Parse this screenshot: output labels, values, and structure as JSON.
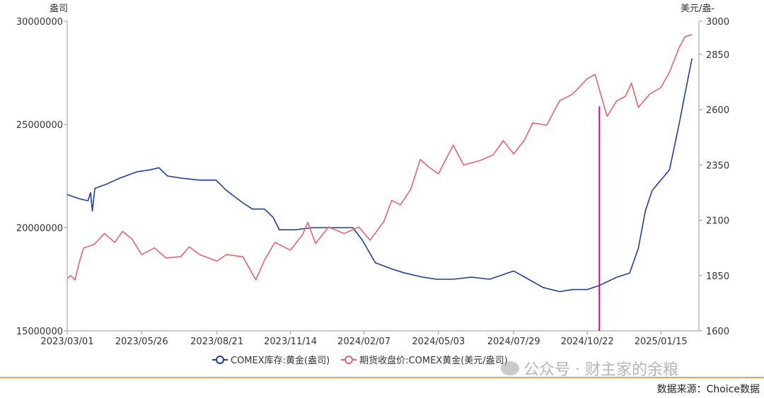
{
  "chart_data": {
    "type": "line",
    "left_axis_unit": "盎司",
    "right_axis_unit": "美元/盎-",
    "y_left_lim": [
      15000000,
      30000000
    ],
    "y_left_ticks": [
      "15000000",
      "20000000",
      "25000000",
      "30000000"
    ],
    "y_right_lim": [
      1600,
      3000
    ],
    "y_right_ticks": [
      "1600",
      "1850",
      "2100",
      "2350",
      "2600",
      "2850",
      "3000"
    ],
    "x_ticks": [
      "2023/03/01",
      "2023/05/26",
      "2023/08/21",
      "2023/11/14",
      "2024/02/07",
      "2024/05/03",
      "2024/07/29",
      "2024/10/22",
      "2025/01/15"
    ],
    "x_range": [
      "2023/03/01",
      "2025/02/28"
    ],
    "marker_line_date": "2024/11/05",
    "marker_line_color": "#cc00aa",
    "series": [
      {
        "name": "COMEX库存:黄金(盎司)",
        "axis": "left",
        "color": "#1f3f9f",
        "points": [
          [
            "2023/03/01",
            21600000
          ],
          [
            "2023/03/15",
            21400000
          ],
          [
            "2023/03/25",
            21300000
          ],
          [
            "2023/03/28",
            21700000
          ],
          [
            "2023/03/30",
            20800000
          ],
          [
            "2023/04/02",
            21900000
          ],
          [
            "2023/04/15",
            22100000
          ],
          [
            "2023/05/01",
            22400000
          ],
          [
            "2023/05/20",
            22700000
          ],
          [
            "2023/06/05",
            22800000
          ],
          [
            "2023/06/15",
            22900000
          ],
          [
            "2023/06/25",
            22500000
          ],
          [
            "2023/07/10",
            22400000
          ],
          [
            "2023/08/01",
            22300000
          ],
          [
            "2023/08/20",
            22300000
          ],
          [
            "2023/09/01",
            21800000
          ],
          [
            "2023/09/20",
            21200000
          ],
          [
            "2023/10/01",
            20900000
          ],
          [
            "2023/10/15",
            20900000
          ],
          [
            "2023/10/25",
            20500000
          ],
          [
            "2023/11/01",
            19900000
          ],
          [
            "2023/11/20",
            19900000
          ],
          [
            "2023/12/10",
            20000000
          ],
          [
            "2024/01/10",
            20000000
          ],
          [
            "2024/01/25",
            20000000
          ],
          [
            "2024/02/05",
            19400000
          ],
          [
            "2024/02/20",
            18300000
          ],
          [
            "2024/03/10",
            18000000
          ],
          [
            "2024/03/25",
            17800000
          ],
          [
            "2024/04/15",
            17600000
          ],
          [
            "2024/05/01",
            17500000
          ],
          [
            "2024/05/20",
            17500000
          ],
          [
            "2024/06/10",
            17600000
          ],
          [
            "2024/07/01",
            17500000
          ],
          [
            "2024/07/15",
            17700000
          ],
          [
            "2024/07/29",
            17900000
          ],
          [
            "2024/08/15",
            17500000
          ],
          [
            "2024/09/01",
            17100000
          ],
          [
            "2024/09/20",
            16900000
          ],
          [
            "2024/10/05",
            17000000
          ],
          [
            "2024/10/22",
            17000000
          ],
          [
            "2024/11/05",
            17200000
          ],
          [
            "2024/11/25",
            17600000
          ],
          [
            "2024/12/10",
            17800000
          ],
          [
            "2024/12/20",
            19000000
          ],
          [
            "2024/12/28",
            20800000
          ],
          [
            "2025/01/05",
            21800000
          ],
          [
            "2025/01/15",
            22300000
          ],
          [
            "2025/01/25",
            22800000
          ],
          [
            "2025/02/05",
            25000000
          ],
          [
            "2025/02/12",
            26500000
          ],
          [
            "2025/02/20",
            28200000
          ]
        ]
      },
      {
        "name": "期货收盘价:COMEX黄金(美元/盎司)",
        "axis": "right",
        "color": "#e8626a",
        "points": [
          [
            "2023/03/01",
            1836
          ],
          [
            "2023/03/05",
            1850
          ],
          [
            "2023/03/10",
            1830
          ],
          [
            "2023/03/15",
            1910
          ],
          [
            "2023/03/20",
            1975
          ],
          [
            "2023/04/01",
            1990
          ],
          [
            "2023/04/13",
            2040
          ],
          [
            "2023/04/25",
            2000
          ],
          [
            "2023/05/04",
            2050
          ],
          [
            "2023/05/15",
            2015
          ],
          [
            "2023/05/26",
            1945
          ],
          [
            "2023/06/10",
            1975
          ],
          [
            "2023/06/23",
            1930
          ],
          [
            "2023/07/10",
            1935
          ],
          [
            "2023/07/20",
            1980
          ],
          [
            "2023/08/01",
            1945
          ],
          [
            "2023/08/21",
            1915
          ],
          [
            "2023/09/01",
            1945
          ],
          [
            "2023/09/20",
            1935
          ],
          [
            "2023/10/05",
            1830
          ],
          [
            "2023/10/15",
            1920
          ],
          [
            "2023/10/27",
            2000
          ],
          [
            "2023/11/14",
            1965
          ],
          [
            "2023/11/28",
            2035
          ],
          [
            "2023/12/04",
            2090
          ],
          [
            "2023/12/13",
            1995
          ],
          [
            "2023/12/28",
            2070
          ],
          [
            "2024/01/15",
            2040
          ],
          [
            "2024/02/01",
            2070
          ],
          [
            "2024/02/14",
            2010
          ],
          [
            "2024/03/01",
            2095
          ],
          [
            "2024/03/10",
            2190
          ],
          [
            "2024/03/20",
            2170
          ],
          [
            "2024/04/01",
            2240
          ],
          [
            "2024/04/12",
            2375
          ],
          [
            "2024/04/22",
            2340
          ],
          [
            "2024/05/03",
            2310
          ],
          [
            "2024/05/20",
            2440
          ],
          [
            "2024/06/01",
            2350
          ],
          [
            "2024/06/20",
            2370
          ],
          [
            "2024/07/05",
            2395
          ],
          [
            "2024/07/17",
            2460
          ],
          [
            "2024/07/29",
            2400
          ],
          [
            "2024/08/10",
            2460
          ],
          [
            "2024/08/20",
            2540
          ],
          [
            "2024/09/05",
            2530
          ],
          [
            "2024/09/20",
            2640
          ],
          [
            "2024/10/05",
            2670
          ],
          [
            "2024/10/22",
            2740
          ],
          [
            "2024/10/31",
            2760
          ],
          [
            "2024/11/05",
            2690
          ],
          [
            "2024/11/14",
            2570
          ],
          [
            "2024/11/25",
            2640
          ],
          [
            "2024/12/05",
            2660
          ],
          [
            "2024/12/12",
            2720
          ],
          [
            "2024/12/20",
            2610
          ],
          [
            "2025/01/02",
            2670
          ],
          [
            "2025/01/15",
            2700
          ],
          [
            "2025/01/25",
            2770
          ],
          [
            "2025/02/05",
            2880
          ],
          [
            "2025/02/12",
            2930
          ],
          [
            "2025/02/20",
            2940
          ]
        ]
      }
    ]
  },
  "source_text": "数据来源：Choice数据",
  "watermark_text": "公众号 · 财主家的余粮"
}
